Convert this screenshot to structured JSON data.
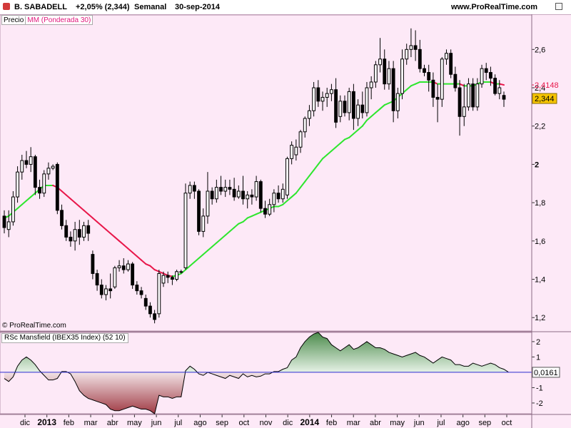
{
  "header": {
    "symbol": "B. SABADELL",
    "change": "+2,05% (2,344)",
    "period": "Semanal",
    "date": "30-sep-2014",
    "site": "www.ProRealTime.com"
  },
  "legend": {
    "price_label": "Precio",
    "ma_label": "MM (Ponderada 30)",
    "rsc_label": "RSc Mansfield (IBEX35 Index) (52 10)"
  },
  "copyright": "© ProRealTime.com",
  "colors": {
    "background": "#fde9f7",
    "ma_up": "#2ee62e",
    "ma_down": "#e8174a",
    "rsc_positive": "#4c8b4c",
    "rsc_negative": "#a03a44",
    "zero_line": "#2b2bd0",
    "price_badge": "#f5c400"
  },
  "chart_data": [
    {
      "type": "candlestick",
      "title": "B. SABADELL",
      "timeframe": "Semanal",
      "ylim": [
        1.13,
        2.78
      ],
      "y_ticks": [
        "1,2",
        "1,4",
        "1,6",
        "1,8",
        "2",
        "2,2",
        "2,4",
        "2,6"
      ],
      "x_labels": [
        "dic",
        "2013",
        "feb",
        "mar",
        "abr",
        "may",
        "jun",
        "jul",
        "ago",
        "sep",
        "oct",
        "nov",
        "dic",
        "2014",
        "feb",
        "mar",
        "abr",
        "may",
        "jun",
        "jul",
        "ago",
        "sep",
        "oct"
      ],
      "last_price": "2,344",
      "ma_value": "2,4148",
      "series": [
        {
          "name": "Precio",
          "ohlc": [
            [
              1.73,
              1.76,
              1.64,
              1.67
            ],
            [
              1.66,
              1.76,
              1.62,
              1.7
            ],
            [
              1.7,
              1.86,
              1.68,
              1.83
            ],
            [
              1.83,
              1.99,
              1.8,
              1.96
            ],
            [
              1.96,
              2.05,
              1.92,
              2.02
            ],
            [
              2.02,
              2.07,
              1.98,
              2.0
            ],
            [
              2.0,
              2.09,
              1.96,
              2.04
            ],
            [
              2.04,
              2.05,
              1.84,
              1.88
            ],
            [
              1.88,
              1.92,
              1.82,
              1.85
            ],
            [
              1.85,
              1.97,
              1.83,
              1.95
            ],
            [
              1.95,
              2.01,
              1.92,
              1.98
            ],
            [
              1.98,
              2.0,
              1.97,
              1.99
            ],
            [
              2.0,
              2.01,
              1.74,
              1.76
            ],
            [
              1.76,
              1.79,
              1.66,
              1.68
            ],
            [
              1.68,
              1.71,
              1.6,
              1.62
            ],
            [
              1.62,
              1.65,
              1.57,
              1.6
            ],
            [
              1.6,
              1.7,
              1.55,
              1.66
            ],
            [
              1.66,
              1.71,
              1.58,
              1.62
            ],
            [
              1.62,
              1.7,
              1.6,
              1.68
            ],
            [
              1.68,
              1.71,
              1.6,
              1.64
            ],
            [
              1.53,
              1.55,
              1.4,
              1.43
            ],
            [
              1.43,
              1.45,
              1.34,
              1.37
            ],
            [
              1.37,
              1.4,
              1.3,
              1.32
            ],
            [
              1.32,
              1.37,
              1.29,
              1.35
            ],
            [
              1.35,
              1.43,
              1.3,
              1.34
            ],
            [
              1.36,
              1.47,
              1.35,
              1.46
            ],
            [
              1.46,
              1.5,
              1.44,
              1.47
            ],
            [
              1.47,
              1.51,
              1.43,
              1.45
            ],
            [
              1.45,
              1.5,
              1.44,
              1.48
            ],
            [
              1.48,
              1.49,
              1.35,
              1.37
            ],
            [
              1.37,
              1.39,
              1.32,
              1.34
            ],
            [
              1.34,
              1.36,
              1.3,
              1.32
            ],
            [
              1.3,
              1.32,
              1.24,
              1.26
            ],
            [
              1.26,
              1.28,
              1.2,
              1.22
            ],
            [
              1.22,
              1.24,
              1.17,
              1.19
            ],
            [
              1.22,
              1.45,
              1.2,
              1.43
            ],
            [
              1.38,
              1.44,
              1.36,
              1.42
            ],
            [
              1.42,
              1.44,
              1.38,
              1.41
            ],
            [
              1.41,
              1.42,
              1.37,
              1.4
            ],
            [
              1.4,
              1.45,
              1.39,
              1.44
            ],
            [
              1.44,
              1.45,
              1.43,
              1.44
            ],
            [
              1.46,
              1.9,
              1.45,
              1.85
            ],
            [
              1.85,
              1.91,
              1.82,
              1.89
            ],
            [
              1.89,
              1.91,
              1.82,
              1.86
            ],
            [
              1.86,
              1.87,
              1.63,
              1.65
            ],
            [
              1.65,
              1.77,
              1.62,
              1.73
            ],
            [
              1.73,
              1.96,
              1.69,
              1.86
            ],
            [
              1.86,
              1.88,
              1.79,
              1.82
            ],
            [
              1.82,
              1.92,
              1.8,
              1.88
            ],
            [
              1.88,
              1.94,
              1.84,
              1.86
            ],
            [
              1.86,
              1.92,
              1.83,
              1.88
            ],
            [
              1.88,
              1.92,
              1.84,
              1.87
            ],
            [
              1.87,
              1.93,
              1.81,
              1.83
            ],
            [
              1.83,
              1.89,
              1.82,
              1.86
            ],
            [
              1.86,
              1.94,
              1.79,
              1.82
            ],
            [
              1.82,
              1.86,
              1.77,
              1.84
            ],
            [
              1.84,
              1.87,
              1.79,
              1.83
            ],
            [
              1.83,
              1.94,
              1.81,
              1.91
            ],
            [
              1.91,
              1.92,
              1.75,
              1.77
            ],
            [
              1.77,
              1.81,
              1.72,
              1.74
            ],
            [
              1.74,
              1.82,
              1.73,
              1.79
            ],
            [
              1.79,
              1.87,
              1.75,
              1.85
            ],
            [
              1.85,
              1.89,
              1.8,
              1.82
            ],
            [
              1.82,
              1.9,
              1.8,
              1.87
            ],
            [
              1.84,
              2.04,
              1.82,
              2.03
            ],
            [
              2.03,
              2.12,
              2.0,
              2.1
            ],
            [
              2.05,
              2.13,
              2.02,
              2.09
            ],
            [
              2.09,
              2.18,
              2.06,
              2.17
            ],
            [
              2.17,
              2.25,
              2.14,
              2.24
            ],
            [
              2.24,
              2.31,
              2.2,
              2.28
            ],
            [
              2.28,
              2.43,
              2.25,
              2.4
            ],
            [
              2.4,
              2.44,
              2.3,
              2.33
            ],
            [
              2.33,
              2.38,
              2.28,
              2.35
            ],
            [
              2.35,
              2.4,
              2.3,
              2.37
            ],
            [
              2.37,
              2.42,
              2.33,
              2.39
            ],
            [
              2.39,
              2.45,
              2.19,
              2.22
            ],
            [
              2.25,
              2.36,
              2.22,
              2.33
            ],
            [
              2.33,
              2.36,
              2.25,
              2.27
            ],
            [
              2.27,
              2.4,
              2.23,
              2.38
            ],
            [
              2.38,
              2.42,
              2.18,
              2.24
            ],
            [
              2.24,
              2.34,
              2.2,
              2.31
            ],
            [
              2.31,
              2.38,
              2.24,
              2.27
            ],
            [
              2.27,
              2.43,
              2.25,
              2.4
            ],
            [
              2.4,
              2.46,
              2.34,
              2.43
            ],
            [
              2.43,
              2.54,
              2.4,
              2.52
            ],
            [
              2.52,
              2.66,
              2.48,
              2.55
            ],
            [
              2.55,
              2.6,
              2.39,
              2.42
            ],
            [
              2.42,
              2.54,
              2.39,
              2.5
            ],
            [
              2.5,
              2.54,
              2.22,
              2.28
            ],
            [
              2.28,
              2.4,
              2.24,
              2.37
            ],
            [
              2.37,
              2.6,
              2.34,
              2.55
            ],
            [
              2.55,
              2.63,
              2.52,
              2.6
            ],
            [
              2.6,
              2.71,
              2.56,
              2.62
            ],
            [
              2.62,
              2.7,
              2.54,
              2.6
            ],
            [
              2.6,
              2.65,
              2.48,
              2.5
            ],
            [
              2.5,
              2.52,
              2.46,
              2.48
            ],
            [
              2.48,
              2.52,
              2.38,
              2.44
            ],
            [
              2.44,
              2.48,
              2.3,
              2.35
            ],
            [
              2.35,
              2.42,
              2.22,
              2.34
            ],
            [
              2.34,
              2.56,
              2.3,
              2.55
            ],
            [
              2.55,
              2.6,
              2.52,
              2.58
            ],
            [
              2.58,
              2.6,
              2.45,
              2.47
            ],
            [
              2.47,
              2.51,
              2.38,
              2.4
            ],
            [
              2.4,
              2.44,
              2.15,
              2.25
            ],
            [
              2.25,
              2.42,
              2.2,
              2.3
            ],
            [
              2.3,
              2.45,
              2.28,
              2.42
            ],
            [
              2.42,
              2.45,
              2.28,
              2.3
            ],
            [
              2.3,
              2.45,
              2.28,
              2.42
            ],
            [
              2.42,
              2.52,
              2.4,
              2.5
            ],
            [
              2.5,
              2.53,
              2.44,
              2.48
            ],
            [
              2.48,
              2.51,
              2.41,
              2.45
            ],
            [
              2.45,
              2.47,
              2.36,
              2.37
            ],
            [
              2.37,
              2.44,
              2.34,
              2.4
            ],
            [
              2.36,
              2.38,
              2.3,
              2.34
            ]
          ]
        },
        {
          "name": "MM (Ponderada 30)",
          "values": [
            1.72,
            1.73,
            1.75,
            1.77,
            1.79,
            1.81,
            1.83,
            1.85,
            1.87,
            1.89,
            1.89,
            1.89,
            1.88,
            1.86,
            1.84,
            1.82,
            1.8,
            1.78,
            1.76,
            1.74,
            1.72,
            1.7,
            1.68,
            1.66,
            1.64,
            1.62,
            1.6,
            1.58,
            1.56,
            1.54,
            1.52,
            1.5,
            1.48,
            1.47,
            1.45,
            1.44,
            1.43,
            1.42,
            1.415,
            1.42,
            1.43,
            1.45,
            1.47,
            1.49,
            1.51,
            1.53,
            1.55,
            1.57,
            1.59,
            1.61,
            1.63,
            1.65,
            1.67,
            1.69,
            1.7,
            1.72,
            1.73,
            1.74,
            1.75,
            1.76,
            1.77,
            1.78,
            1.78,
            1.79,
            1.81,
            1.83,
            1.85,
            1.88,
            1.91,
            1.94,
            1.97,
            2.0,
            2.03,
            2.05,
            2.07,
            2.09,
            2.11,
            2.13,
            2.14,
            2.16,
            2.18,
            2.2,
            2.23,
            2.25,
            2.27,
            2.29,
            2.31,
            2.32,
            2.33,
            2.35,
            2.37,
            2.39,
            2.41,
            2.42,
            2.43,
            2.43,
            2.43,
            2.43,
            2.42,
            2.42,
            2.42,
            2.42,
            2.42,
            2.42,
            2.41,
            2.41,
            2.41,
            2.42,
            2.43,
            2.43,
            2.43,
            2.42,
            2.42,
            2.4148
          ]
        }
      ]
    },
    {
      "type": "area",
      "title": "RSc Mansfield (IBEX35 Index) (52 10)",
      "ylim": [
        -2.7,
        2.6
      ],
      "y_ticks": [
        "-2",
        "-1",
        "1",
        "2"
      ],
      "last_value": "0,0161",
      "series": [
        {
          "name": "RSc Mansfield (IBEX35 Index) (52 10)",
          "values": [
            -0.4,
            -0.6,
            -0.3,
            0.4,
            0.8,
            1.0,
            0.8,
            0.5,
            0.1,
            -0.2,
            -0.5,
            -0.5,
            -0.4,
            0.05,
            0.05,
            -0.1,
            -0.6,
            -1.2,
            -1.5,
            -1.7,
            -1.8,
            -1.9,
            -2.0,
            -2.1,
            -2.4,
            -2.5,
            -2.5,
            -2.4,
            -2.3,
            -2.2,
            -2.3,
            -2.4,
            -2.4,
            -2.5,
            -2.7,
            -1.5,
            -1.6,
            -1.6,
            -1.7,
            -1.6,
            -1.6,
            0.1,
            0.4,
            0.2,
            -0.1,
            -0.2,
            0.0,
            -0.1,
            -0.2,
            -0.3,
            -0.4,
            -0.2,
            -0.3,
            -0.4,
            -0.1,
            -0.3,
            -0.2,
            -0.3,
            -0.25,
            -0.1,
            -0.1,
            0.05,
            0.05,
            0.2,
            0.3,
            0.8,
            1.0,
            1.6,
            2.0,
            2.3,
            2.5,
            2.6,
            2.3,
            2.2,
            1.8,
            1.6,
            1.4,
            1.6,
            1.8,
            1.5,
            1.6,
            1.8,
            2.0,
            1.8,
            1.6,
            1.6,
            1.5,
            1.3,
            1.2,
            1.1,
            1.0,
            1.1,
            1.2,
            1.3,
            1.1,
            1.0,
            0.8,
            0.6,
            0.8,
            1.0,
            0.9,
            0.8,
            0.5,
            0.5,
            0.4,
            0.4,
            0.6,
            0.5,
            0.4,
            0.5,
            0.6,
            0.5,
            0.3,
            0.2,
            0.0161
          ]
        }
      ]
    }
  ]
}
